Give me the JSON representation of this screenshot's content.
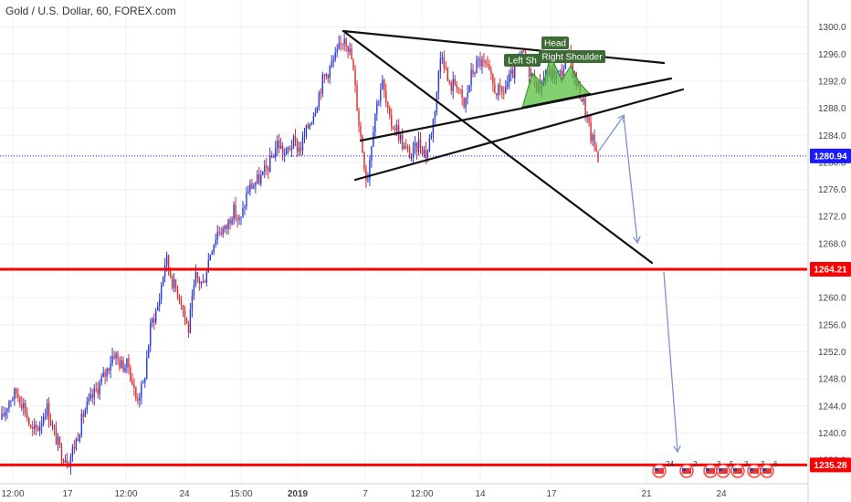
{
  "chart_data": {
    "type": "candlestick",
    "title": "Gold / U.S. Dollar, 60, FOREX.com",
    "y_axis": {
      "ylim": [
        1232.5,
        1304.0
      ],
      "ticks": [
        1300,
        1296,
        1292,
        1288,
        1284,
        1280,
        1276,
        1272,
        1268,
        1264,
        1260,
        1256,
        1252,
        1248,
        1244,
        1240,
        1236
      ]
    },
    "x_axis": {
      "tick_labels": [
        "12:00",
        "17",
        "12:00",
        "24",
        "15:00",
        "2019",
        "7",
        "12:00",
        "14",
        "17",
        "21",
        "24"
      ],
      "bold_labels": [
        "2019"
      ]
    },
    "price_path": [
      1242,
      1245,
      1246,
      1244,
      1240,
      1241,
      1244,
      1240,
      1237,
      1236,
      1239,
      1243,
      1245,
      1247,
      1249,
      1252,
      1250,
      1250,
      1245,
      1247,
      1256,
      1259,
      1266,
      1262,
      1260,
      1255,
      1263,
      1262,
      1267,
      1270,
      1270,
      1273,
      1271,
      1276,
      1277,
      1278,
      1280,
      1283,
      1281,
      1283,
      1282,
      1285,
      1288,
      1292,
      1294,
      1296,
      1299,
      1295,
      1285,
      1277,
      1287,
      1292,
      1286,
      1285,
      1282,
      1281,
      1283,
      1281,
      1287,
      1297,
      1291,
      1292,
      1288,
      1293,
      1295,
      1294,
      1291,
      1290,
      1292,
      1294,
      1296,
      1293,
      1291,
      1293,
      1293,
      1293,
      1296,
      1292,
      1289,
      1284,
      1281
    ],
    "series": [
      {
        "name": "current price",
        "value": 1280.94,
        "label": "1280.94",
        "color": "#1a1aff",
        "style": "dotted"
      },
      {
        "name": "support 1",
        "value": 1264.21,
        "label": "1264.21",
        "color": "#ff0000",
        "style": "solid"
      },
      {
        "name": "support 2",
        "value": 1235.28,
        "label": "1235.28",
        "color": "#ff0000",
        "style": "solid"
      }
    ],
    "annotations": [
      "Head",
      "Left Sh",
      "Right Shoulder"
    ],
    "event_flags": [
      "24",
      "2",
      "3",
      "5",
      "3",
      "3",
      "6"
    ],
    "colors": {
      "bull": "#2a3bd6",
      "bear": "#d92b2b",
      "support_line": "#ff0000",
      "current_price": "#1a1aff",
      "pattern_fill": "#57c241",
      "label_bg": "#3d6b35",
      "arrow": "#7a93cc"
    },
    "grid": true
  }
}
